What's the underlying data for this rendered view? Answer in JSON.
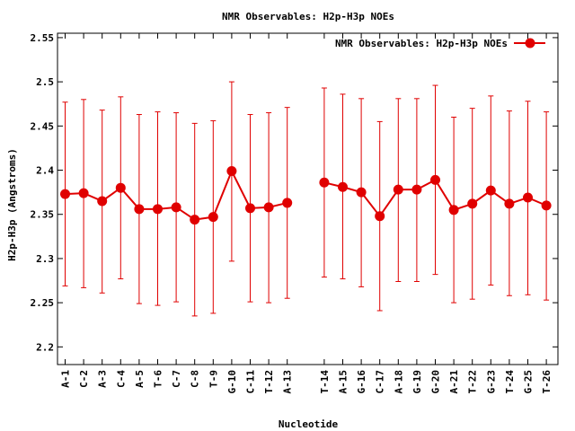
{
  "colors": {
    "series": "#e00000",
    "axis": "#000000",
    "background": "#ffffff"
  },
  "chart_data": {
    "type": "line",
    "title": "NMR Observables: H2p-H3p NOEs",
    "xlabel": "Nucleotide",
    "ylabel": "H2p-H3p (Angstroms)",
    "ylim": [
      2.18,
      2.555
    ],
    "yticks": [
      "2.2",
      "2.25",
      "2.3",
      "2.35",
      "2.4",
      "2.45",
      "2.5",
      "2.55"
    ],
    "grid": false,
    "legend_position": "top-right",
    "categories": [
      "A-1",
      "C-2",
      "A-3",
      "C-4",
      "A-5",
      "T-6",
      "C-7",
      "C-8",
      "T-9",
      "G-10",
      "C-11",
      "T-12",
      "A-13",
      "T-14",
      "A-15",
      "G-16",
      "C-17",
      "A-18",
      "G-19",
      "G-20",
      "A-21",
      "T-22",
      "G-23",
      "T-24",
      "G-25",
      "T-26"
    ],
    "x": [
      1,
      2,
      3,
      4,
      5,
      6,
      7,
      8,
      9,
      10,
      11,
      12,
      13,
      15,
      16,
      17,
      18,
      19,
      20,
      21,
      22,
      23,
      24,
      25,
      26,
      27
    ],
    "series": [
      {
        "name": "NMR Observables: H2p-H3p NOEs",
        "segments": [
          [
            0,
            12
          ],
          [
            13,
            25
          ]
        ],
        "values": [
          2.373,
          2.374,
          2.365,
          2.38,
          2.356,
          2.356,
          2.358,
          2.344,
          2.347,
          2.399,
          2.357,
          2.358,
          2.363,
          2.386,
          2.381,
          2.375,
          2.348,
          2.378,
          2.378,
          2.389,
          2.355,
          2.362,
          2.377,
          2.362,
          2.369,
          2.36
        ],
        "lower": [
          2.269,
          2.267,
          2.261,
          2.277,
          2.249,
          2.247,
          2.251,
          2.235,
          2.238,
          2.297,
          2.251,
          2.25,
          2.255,
          2.279,
          2.277,
          2.268,
          2.241,
          2.274,
          2.274,
          2.282,
          2.25,
          2.254,
          2.27,
          2.258,
          2.259,
          2.253
        ],
        "upper": [
          2.477,
          2.48,
          2.468,
          2.483,
          2.463,
          2.466,
          2.465,
          2.453,
          2.456,
          2.5,
          2.463,
          2.465,
          2.471,
          2.493,
          2.486,
          2.481,
          2.455,
          2.481,
          2.481,
          2.496,
          2.46,
          2.47,
          2.484,
          2.467,
          2.478,
          2.466
        ]
      }
    ]
  }
}
